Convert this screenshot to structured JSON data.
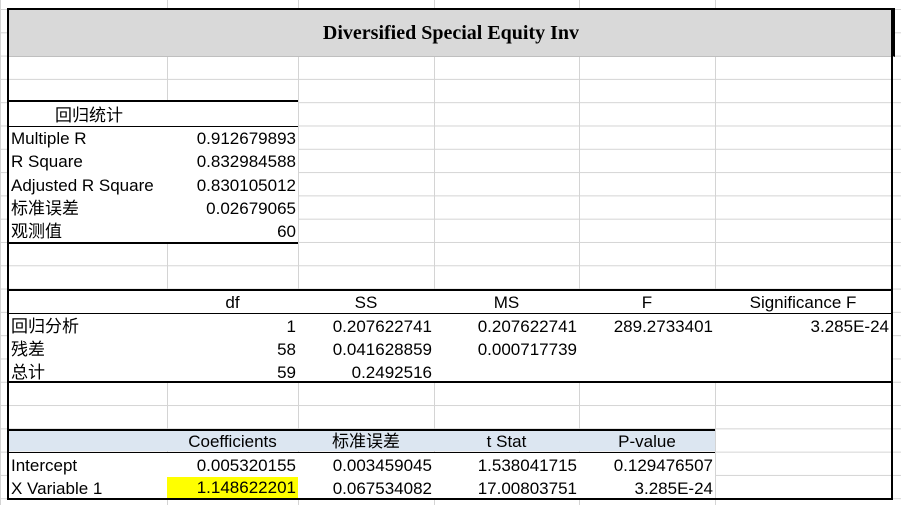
{
  "title": "Diversified Special Equity Inv",
  "regression_stats": {
    "header": "回归统计",
    "rows": [
      {
        "label": "Multiple R",
        "value": "0.912679893"
      },
      {
        "label": "R Square",
        "value": "0.832984588"
      },
      {
        "label": "Adjusted R Square",
        "value": "0.830105012"
      },
      {
        "label": "标准误差",
        "value": "0.02679065"
      },
      {
        "label": "观测值",
        "value": "60"
      }
    ]
  },
  "anova": {
    "headers": [
      "",
      "df",
      "SS",
      "MS",
      "F",
      "Significance F"
    ],
    "rows": [
      [
        "回归分析",
        "1",
        "0.207622741",
        "0.207622741",
        "289.2733401",
        "3.285E-24"
      ],
      [
        "残差",
        "58",
        "0.041628859",
        "0.000717739",
        "",
        ""
      ],
      [
        "总计",
        "59",
        "0.2492516",
        "",
        "",
        ""
      ]
    ]
  },
  "coefficients": {
    "headers": [
      "",
      "Coefficients",
      "标准误差",
      "t Stat",
      "P-value"
    ],
    "rows": [
      [
        "Intercept",
        "0.005320155",
        "0.003459045",
        "1.538041715",
        "0.129476507"
      ],
      [
        "X Variable 1",
        "1.148622201",
        "0.067534082",
        "17.00803751",
        "3.285E-24"
      ]
    ]
  },
  "colors": {
    "title_bg": "#d9d9d9",
    "header_bg": "#dce6f1",
    "highlight": "#ffff00"
  }
}
